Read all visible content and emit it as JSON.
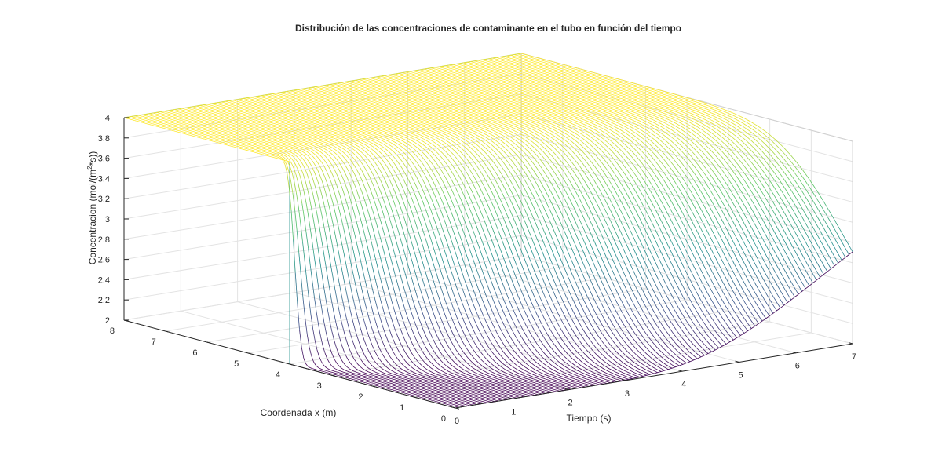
{
  "chart_data": {
    "type": "surface",
    "title": "Distribución de las concentraciones de contaminante en el tubo en función del tiempo",
    "xlabel": "Tiempo (s)",
    "ylabel": "Coordenada x (m)",
    "zlabel_main": "Concentracion (mol/(m",
    "zlabel_sup": "2",
    "zlabel_mid": "*s",
    "zlabel_end": "))",
    "xlim": [
      0,
      7
    ],
    "ylim": [
      0,
      8
    ],
    "zlim": [
      2,
      4
    ],
    "xticks": [
      "0",
      "1",
      "2",
      "3",
      "4",
      "5",
      "6",
      "7"
    ],
    "yticks": [
      "0",
      "1",
      "2",
      "3",
      "4",
      "5",
      "6",
      "7",
      "8"
    ],
    "zticks": [
      "2",
      "2.2",
      "2.4",
      "2.6",
      "2.8",
      "3",
      "3.2",
      "3.4",
      "3.6",
      "3.8",
      "4"
    ],
    "initial_condition": "4 for x > 4, 2 for x < 4",
    "t_end": 7,
    "x_end": 8,
    "colormap": [
      "#440154",
      "#3b528b",
      "#21918c",
      "#5ec962",
      "#fde725"
    ],
    "grid": true
  }
}
